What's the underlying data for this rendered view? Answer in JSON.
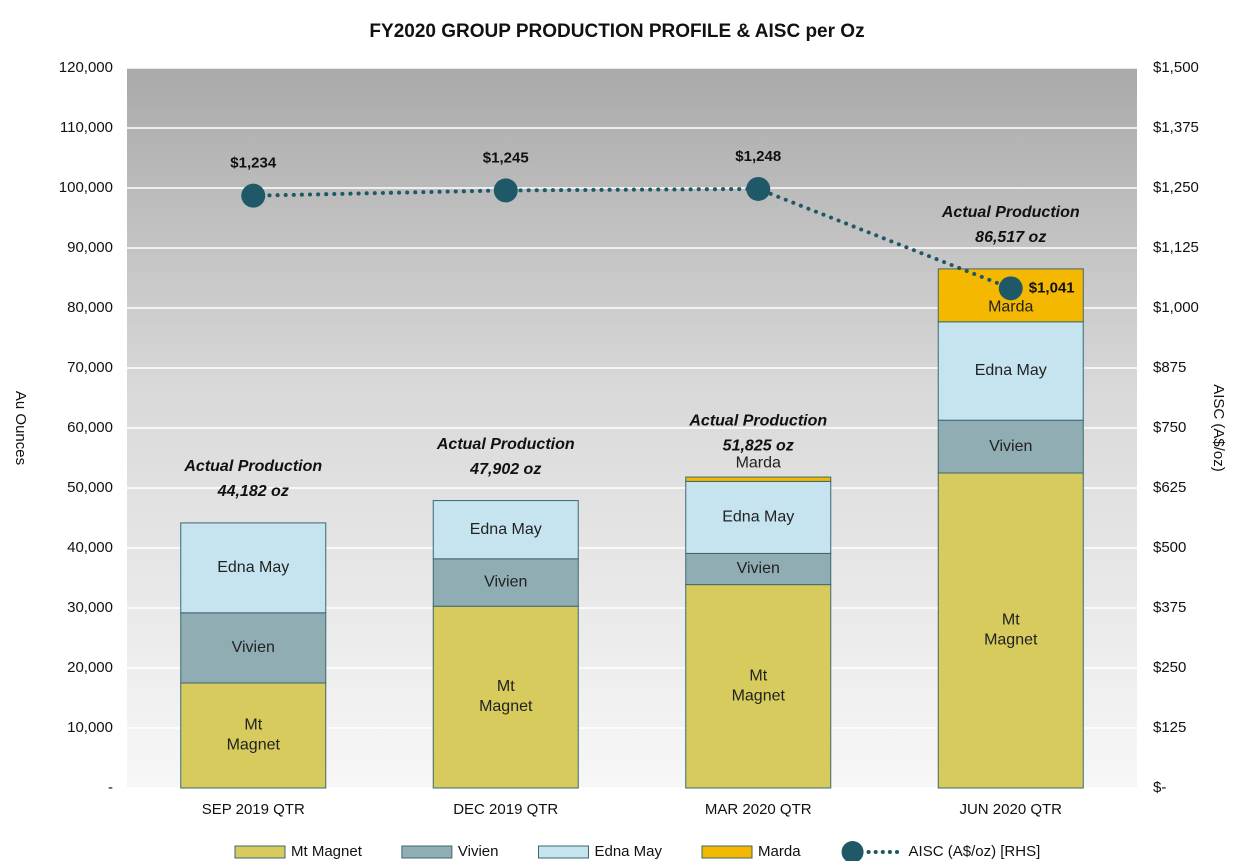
{
  "chart_data": {
    "type": "bar",
    "title": "FY2020 GROUP PRODUCTION PROFILE & AISC per Oz",
    "stacked": true,
    "categories": [
      "SEP 2019 QTR",
      "DEC 2019 QTR",
      "MAR 2020 QTR",
      "JUN 2020 QTR"
    ],
    "y_label": "Au Ounces",
    "y2_label": "AISC (A$/oz)",
    "ylim": [
      0,
      120000
    ],
    "yticks": [
      {
        "value": 0,
        "label": "-"
      },
      {
        "value": 10000,
        "label": "10,000"
      },
      {
        "value": 20000,
        "label": "20,000"
      },
      {
        "value": 30000,
        "label": "30,000"
      },
      {
        "value": 40000,
        "label": "40,000"
      },
      {
        "value": 50000,
        "label": "50,000"
      },
      {
        "value": 60000,
        "label": "60,000"
      },
      {
        "value": 70000,
        "label": "70,000"
      },
      {
        "value": 80000,
        "label": "80,000"
      },
      {
        "value": 90000,
        "label": "90,000"
      },
      {
        "value": 100000,
        "label": "100,000"
      },
      {
        "value": 110000,
        "label": "110,000"
      },
      {
        "value": 120000,
        "label": "120,000"
      }
    ],
    "y2lim": [
      0,
      1500
    ],
    "y2ticks": [
      {
        "value": 0,
        "label": "$-"
      },
      {
        "value": 125,
        "label": "$125"
      },
      {
        "value": 250,
        "label": "$250"
      },
      {
        "value": 375,
        "label": "$375"
      },
      {
        "value": 500,
        "label": "$500"
      },
      {
        "value": 625,
        "label": "$625"
      },
      {
        "value": 750,
        "label": "$750"
      },
      {
        "value": 875,
        "label": "$875"
      },
      {
        "value": 1000,
        "label": "$1,000"
      },
      {
        "value": 1125,
        "label": "$1,125"
      },
      {
        "value": 1250,
        "label": "$1,250"
      },
      {
        "value": 1375,
        "label": "$1,375"
      },
      {
        "value": 1500,
        "label": "$1,500"
      }
    ],
    "grid": true,
    "legend": "bottom",
    "series": [
      {
        "name": "Mt Magnet",
        "color": "#d6cb5c",
        "values": [
          17500,
          30300,
          33900,
          52500
        ]
      },
      {
        "name": "Vivien",
        "color": "#8fadb3",
        "values": [
          11700,
          7900,
          5200,
          8800
        ]
      },
      {
        "name": "Edna May",
        "color": "#c6e4f0",
        "values": [
          14982,
          9702,
          12000,
          16400
        ]
      },
      {
        "name": "Marda",
        "color": "#f5b800",
        "values": [
          null,
          null,
          725,
          8817
        ]
      },
      {
        "name": "AISC (A$/oz) [RHS]",
        "type": "line",
        "axis": "y2",
        "color": "#1f5968",
        "values": [
          1234,
          1245,
          1248,
          1041
        ],
        "value_labels": [
          "$1,234",
          "$1,245",
          "$1,248",
          "$1,041"
        ]
      }
    ],
    "annotations": [
      {
        "title": "Actual Production",
        "text": "44,182 oz"
      },
      {
        "title": "Actual Production",
        "text": "47,902 oz"
      },
      {
        "title": "Actual Production",
        "text": "51,825 oz"
      },
      {
        "title": "Actual Production",
        "text": "86,517 oz"
      }
    ]
  }
}
